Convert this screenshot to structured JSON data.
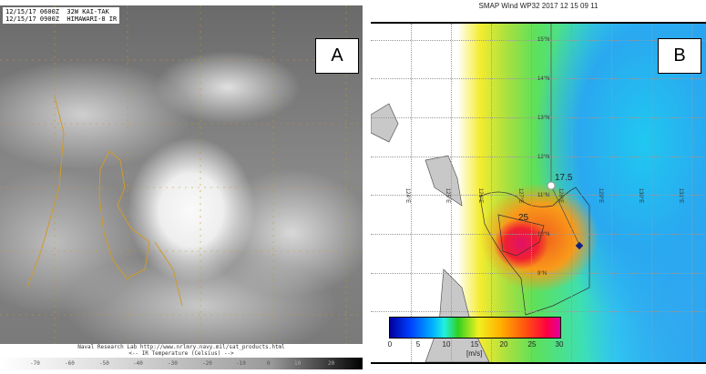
{
  "panel_a": {
    "header_line1": "12/15/17 0600Z  32W KAI-TAK",
    "header_line2": "12/15/17 0900Z  HIMAWARI-8 IR",
    "label": "A",
    "credit": "Naval Research Lab http://www.nrlmry.navy.mil/sat_products.html",
    "scale_title": "<--   IR Temperature (Celsius)   -->",
    "scale_ticks": [
      "-70",
      "-60",
      "-50",
      "-40",
      "-30",
      "-20",
      "-10",
      "0",
      "10",
      "20"
    ]
  },
  "panel_b": {
    "title": "SMAP Wind  WP32  2017 12 15 09 11",
    "label": "B",
    "lat_labels": [
      "15°N",
      "14°N",
      "13°N",
      "12°N",
      "11°N",
      "10°N",
      "9°N"
    ],
    "lon_labels": [
      "124°E",
      "125°E",
      "126°E",
      "127°E",
      "128°E",
      "129°E",
      "130°E",
      "131°E"
    ],
    "contour_labels": [
      "17.5",
      "25"
    ],
    "colorbar_ticks": [
      "0",
      "5",
      "10",
      "15",
      "20",
      "25",
      "30"
    ],
    "colorbar_unit": "[m/s]",
    "colorbar_range": [
      0,
      30
    ]
  }
}
